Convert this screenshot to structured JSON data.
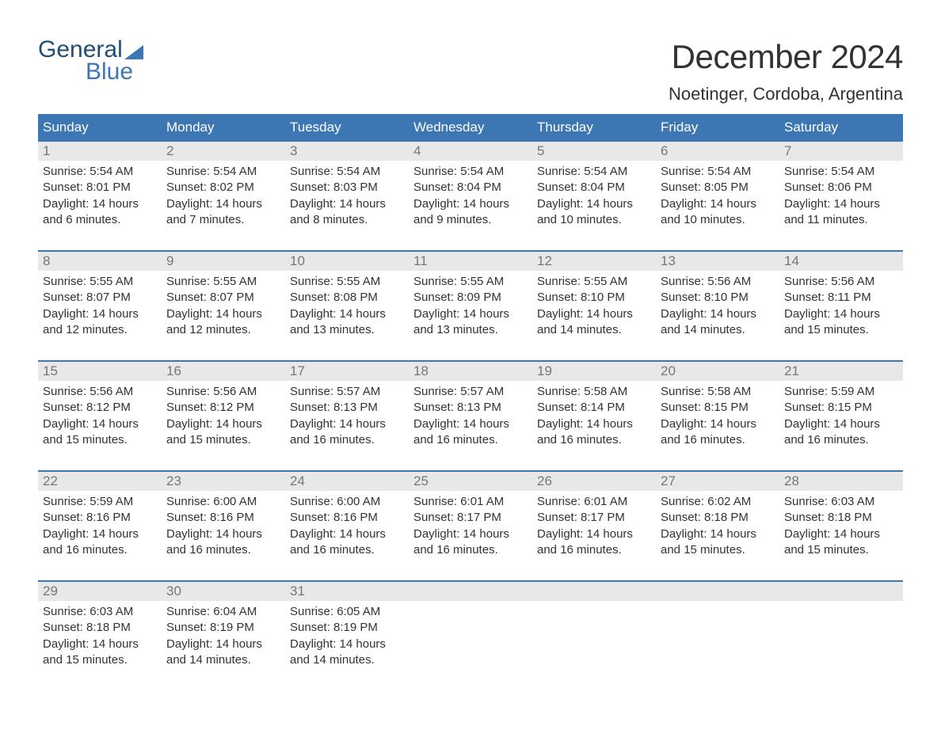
{
  "logo": {
    "word1": "General",
    "word2": "Blue",
    "text_color_dark": "#1f4e79",
    "text_color_blue": "#3d77b3",
    "sail_color": "#3d77b3"
  },
  "header": {
    "month_title": "December 2024",
    "location": "Noetinger, Cordoba, Argentina",
    "title_fontsize": 42,
    "location_fontsize": 22
  },
  "calendar": {
    "header_bg": "#3d77b3",
    "header_text_color": "#ffffff",
    "row_border_color": "#3d77b3",
    "daynum_bg": "#e8e8e8",
    "daynum_color": "#777777",
    "body_text_color": "#333333",
    "background_color": "#ffffff",
    "cell_fontsize": 15,
    "day_names": [
      "Sunday",
      "Monday",
      "Tuesday",
      "Wednesday",
      "Thursday",
      "Friday",
      "Saturday"
    ],
    "weeks": [
      [
        {
          "day": "1",
          "sunrise": "Sunrise: 5:54 AM",
          "sunset": "Sunset: 8:01 PM",
          "d1": "Daylight: 14 hours",
          "d2": "and 6 minutes."
        },
        {
          "day": "2",
          "sunrise": "Sunrise: 5:54 AM",
          "sunset": "Sunset: 8:02 PM",
          "d1": "Daylight: 14 hours",
          "d2": "and 7 minutes."
        },
        {
          "day": "3",
          "sunrise": "Sunrise: 5:54 AM",
          "sunset": "Sunset: 8:03 PM",
          "d1": "Daylight: 14 hours",
          "d2": "and 8 minutes."
        },
        {
          "day": "4",
          "sunrise": "Sunrise: 5:54 AM",
          "sunset": "Sunset: 8:04 PM",
          "d1": "Daylight: 14 hours",
          "d2": "and 9 minutes."
        },
        {
          "day": "5",
          "sunrise": "Sunrise: 5:54 AM",
          "sunset": "Sunset: 8:04 PM",
          "d1": "Daylight: 14 hours",
          "d2": "and 10 minutes."
        },
        {
          "day": "6",
          "sunrise": "Sunrise: 5:54 AM",
          "sunset": "Sunset: 8:05 PM",
          "d1": "Daylight: 14 hours",
          "d2": "and 10 minutes."
        },
        {
          "day": "7",
          "sunrise": "Sunrise: 5:54 AM",
          "sunset": "Sunset: 8:06 PM",
          "d1": "Daylight: 14 hours",
          "d2": "and 11 minutes."
        }
      ],
      [
        {
          "day": "8",
          "sunrise": "Sunrise: 5:55 AM",
          "sunset": "Sunset: 8:07 PM",
          "d1": "Daylight: 14 hours",
          "d2": "and 12 minutes."
        },
        {
          "day": "9",
          "sunrise": "Sunrise: 5:55 AM",
          "sunset": "Sunset: 8:07 PM",
          "d1": "Daylight: 14 hours",
          "d2": "and 12 minutes."
        },
        {
          "day": "10",
          "sunrise": "Sunrise: 5:55 AM",
          "sunset": "Sunset: 8:08 PM",
          "d1": "Daylight: 14 hours",
          "d2": "and 13 minutes."
        },
        {
          "day": "11",
          "sunrise": "Sunrise: 5:55 AM",
          "sunset": "Sunset: 8:09 PM",
          "d1": "Daylight: 14 hours",
          "d2": "and 13 minutes."
        },
        {
          "day": "12",
          "sunrise": "Sunrise: 5:55 AM",
          "sunset": "Sunset: 8:10 PM",
          "d1": "Daylight: 14 hours",
          "d2": "and 14 minutes."
        },
        {
          "day": "13",
          "sunrise": "Sunrise: 5:56 AM",
          "sunset": "Sunset: 8:10 PM",
          "d1": "Daylight: 14 hours",
          "d2": "and 14 minutes."
        },
        {
          "day": "14",
          "sunrise": "Sunrise: 5:56 AM",
          "sunset": "Sunset: 8:11 PM",
          "d1": "Daylight: 14 hours",
          "d2": "and 15 minutes."
        }
      ],
      [
        {
          "day": "15",
          "sunrise": "Sunrise: 5:56 AM",
          "sunset": "Sunset: 8:12 PM",
          "d1": "Daylight: 14 hours",
          "d2": "and 15 minutes."
        },
        {
          "day": "16",
          "sunrise": "Sunrise: 5:56 AM",
          "sunset": "Sunset: 8:12 PM",
          "d1": "Daylight: 14 hours",
          "d2": "and 15 minutes."
        },
        {
          "day": "17",
          "sunrise": "Sunrise: 5:57 AM",
          "sunset": "Sunset: 8:13 PM",
          "d1": "Daylight: 14 hours",
          "d2": "and 16 minutes."
        },
        {
          "day": "18",
          "sunrise": "Sunrise: 5:57 AM",
          "sunset": "Sunset: 8:13 PM",
          "d1": "Daylight: 14 hours",
          "d2": "and 16 minutes."
        },
        {
          "day": "19",
          "sunrise": "Sunrise: 5:58 AM",
          "sunset": "Sunset: 8:14 PM",
          "d1": "Daylight: 14 hours",
          "d2": "and 16 minutes."
        },
        {
          "day": "20",
          "sunrise": "Sunrise: 5:58 AM",
          "sunset": "Sunset: 8:15 PM",
          "d1": "Daylight: 14 hours",
          "d2": "and 16 minutes."
        },
        {
          "day": "21",
          "sunrise": "Sunrise: 5:59 AM",
          "sunset": "Sunset: 8:15 PM",
          "d1": "Daylight: 14 hours",
          "d2": "and 16 minutes."
        }
      ],
      [
        {
          "day": "22",
          "sunrise": "Sunrise: 5:59 AM",
          "sunset": "Sunset: 8:16 PM",
          "d1": "Daylight: 14 hours",
          "d2": "and 16 minutes."
        },
        {
          "day": "23",
          "sunrise": "Sunrise: 6:00 AM",
          "sunset": "Sunset: 8:16 PM",
          "d1": "Daylight: 14 hours",
          "d2": "and 16 minutes."
        },
        {
          "day": "24",
          "sunrise": "Sunrise: 6:00 AM",
          "sunset": "Sunset: 8:16 PM",
          "d1": "Daylight: 14 hours",
          "d2": "and 16 minutes."
        },
        {
          "day": "25",
          "sunrise": "Sunrise: 6:01 AM",
          "sunset": "Sunset: 8:17 PM",
          "d1": "Daylight: 14 hours",
          "d2": "and 16 minutes."
        },
        {
          "day": "26",
          "sunrise": "Sunrise: 6:01 AM",
          "sunset": "Sunset: 8:17 PM",
          "d1": "Daylight: 14 hours",
          "d2": "and 16 minutes."
        },
        {
          "day": "27",
          "sunrise": "Sunrise: 6:02 AM",
          "sunset": "Sunset: 8:18 PM",
          "d1": "Daylight: 14 hours",
          "d2": "and 15 minutes."
        },
        {
          "day": "28",
          "sunrise": "Sunrise: 6:03 AM",
          "sunset": "Sunset: 8:18 PM",
          "d1": "Daylight: 14 hours",
          "d2": "and 15 minutes."
        }
      ],
      [
        {
          "day": "29",
          "sunrise": "Sunrise: 6:03 AM",
          "sunset": "Sunset: 8:18 PM",
          "d1": "Daylight: 14 hours",
          "d2": "and 15 minutes."
        },
        {
          "day": "30",
          "sunrise": "Sunrise: 6:04 AM",
          "sunset": "Sunset: 8:19 PM",
          "d1": "Daylight: 14 hours",
          "d2": "and 14 minutes."
        },
        {
          "day": "31",
          "sunrise": "Sunrise: 6:05 AM",
          "sunset": "Sunset: 8:19 PM",
          "d1": "Daylight: 14 hours",
          "d2": "and 14 minutes."
        },
        {
          "empty": true
        },
        {
          "empty": true
        },
        {
          "empty": true
        },
        {
          "empty": true
        }
      ]
    ]
  }
}
